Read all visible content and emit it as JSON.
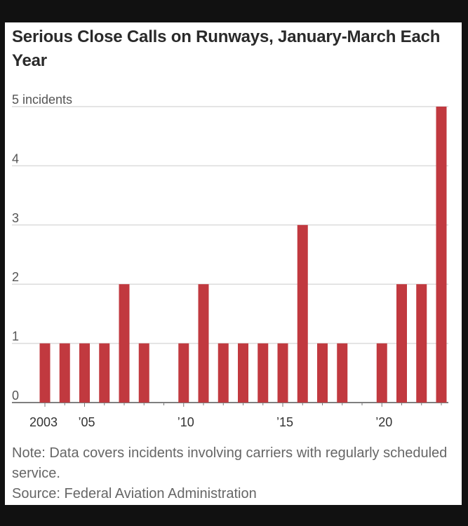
{
  "chart_data": {
    "type": "bar",
    "title": "Serious Close Calls on Runways, January-March Each Year",
    "ylabel_unit": "incidents",
    "ylim": [
      0,
      5
    ],
    "yticks": [
      0,
      1,
      2,
      3,
      4,
      5
    ],
    "ytick_labels": [
      "0",
      "1",
      "2",
      "3",
      "4",
      "5 incidents"
    ],
    "x": [
      2003,
      2004,
      2005,
      2006,
      2007,
      2008,
      2009,
      2010,
      2011,
      2012,
      2013,
      2014,
      2015,
      2016,
      2017,
      2018,
      2019,
      2020,
      2021,
      2022,
      2023
    ],
    "values": [
      1,
      1,
      1,
      1,
      2,
      1,
      0,
      1,
      2,
      1,
      1,
      1,
      1,
      3,
      1,
      1,
      0,
      1,
      2,
      2,
      5
    ],
    "xtick_labels": [
      {
        "year": 2003,
        "label": "2003"
      },
      {
        "year": 2005,
        "label": "’05"
      },
      {
        "year": 2010,
        "label": "’10"
      },
      {
        "year": 2015,
        "label": "’15"
      },
      {
        "year": 2020,
        "label": "’20"
      }
    ],
    "bar_color": "#c1393f",
    "grid": true
  },
  "note": "Note: Data covers incidents involving carriers with regularly scheduled service.",
  "source": "Source: Federal Aviation Administration"
}
